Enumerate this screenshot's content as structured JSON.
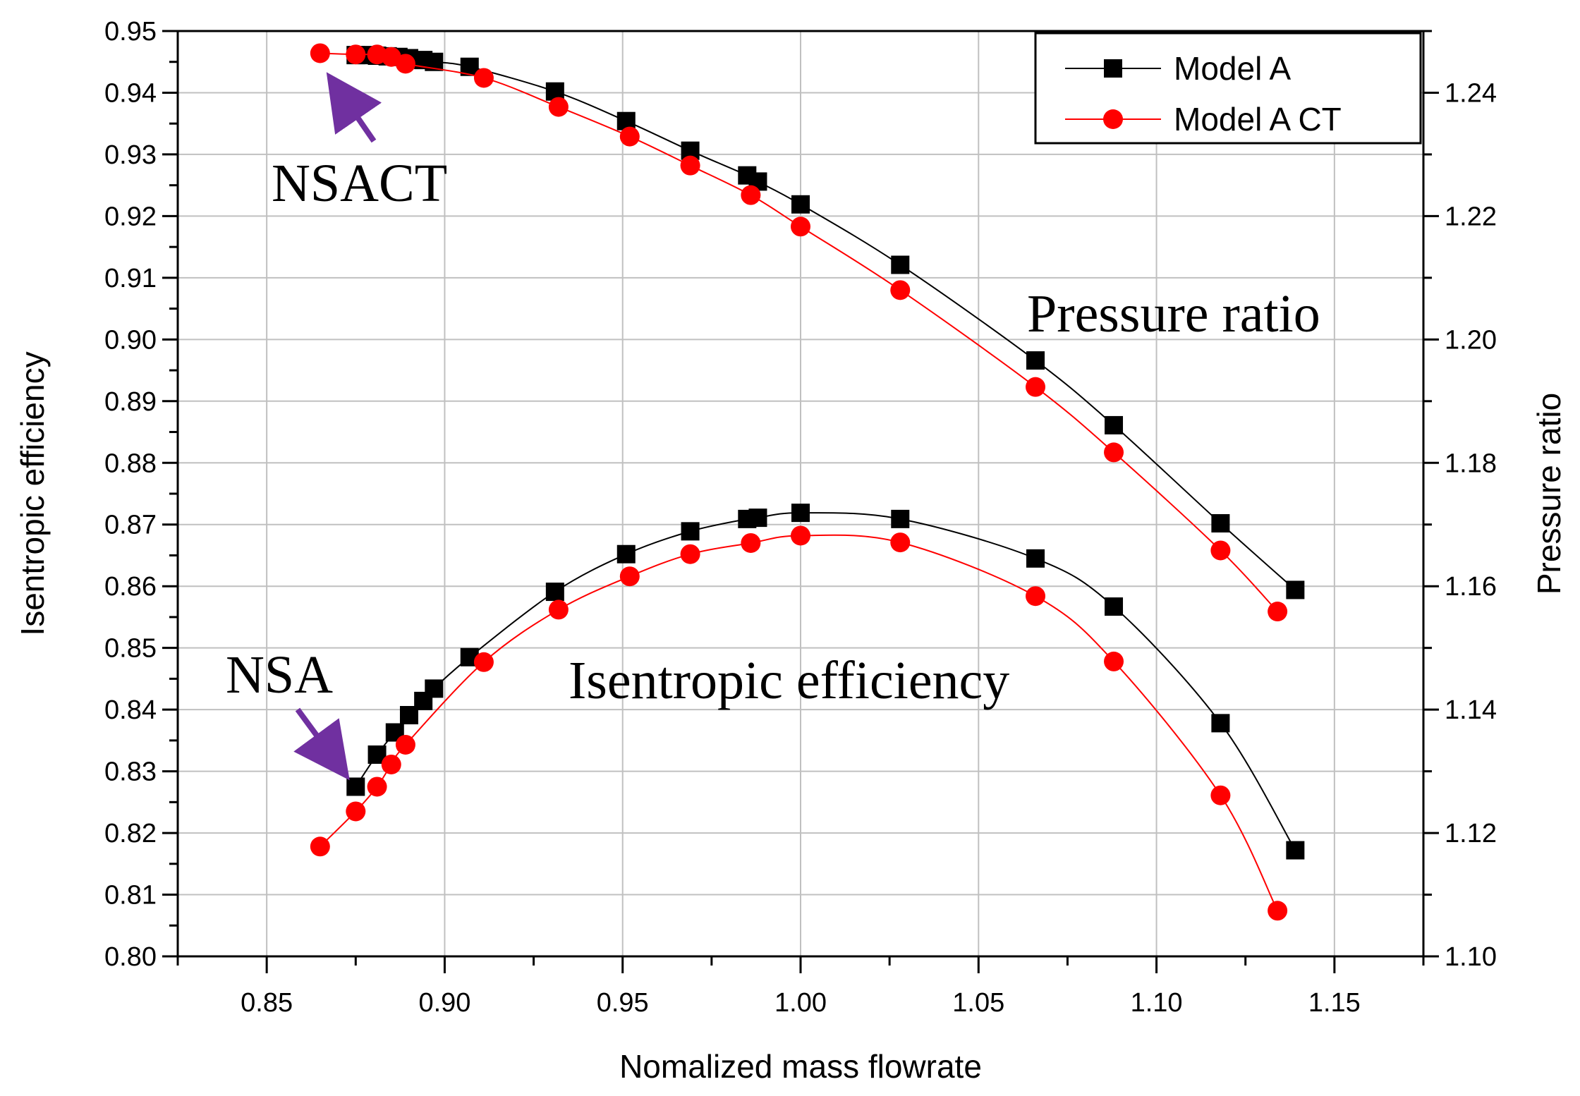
{
  "chart_data": {
    "type": "line",
    "xlabel": "Nomalized mass flowrate",
    "ylabel_left": "Isentropic efficiency",
    "ylabel_right": "Pressure ratio",
    "xlim": [
      0.825,
      1.175
    ],
    "ylim_left": [
      0.8,
      0.95
    ],
    "ylim_right": [
      1.1,
      1.25
    ],
    "x_ticks": [
      "0.85",
      "0.90",
      "0.95",
      "1.00",
      "1.05",
      "1.10",
      "1.15"
    ],
    "y_left_ticks": [
      "0.80",
      "0.81",
      "0.82",
      "0.83",
      "0.84",
      "0.85",
      "0.86",
      "0.87",
      "0.88",
      "0.89",
      "0.90",
      "0.91",
      "0.92",
      "0.93",
      "0.94",
      "0.95"
    ],
    "y_right_ticks": [
      "1.10",
      "1.12",
      "1.14",
      "1.16",
      "1.18",
      "1.20",
      "1.22",
      "1.24"
    ],
    "grid": true,
    "legend_position": "top-right",
    "series": [
      {
        "name": "Model A",
        "axis": "right",
        "quantity": "Pressure ratio",
        "color": "#000000",
        "marker": "square",
        "x": [
          0.875,
          0.878,
          0.881,
          0.884,
          0.887,
          0.89,
          0.894,
          0.897,
          0.907,
          0.931,
          0.951,
          0.969,
          0.985,
          0.988,
          1.0,
          1.028,
          1.066,
          1.088,
          1.118,
          1.139
        ],
        "values": [
          1.2461,
          1.2461,
          1.246,
          1.2459,
          1.2458,
          1.2456,
          1.2453,
          1.245,
          1.2442,
          1.2402,
          1.2354,
          1.2306,
          1.2266,
          1.2256,
          1.2219,
          1.2121,
          1.1966,
          1.1861,
          1.1702,
          1.1594
        ]
      },
      {
        "name": "Model A CT",
        "axis": "right",
        "quantity": "Pressure ratio",
        "color": "#ff0000",
        "marker": "circle",
        "x": [
          0.865,
          0.875,
          0.881,
          0.885,
          0.889,
          0.911,
          0.932,
          0.952,
          0.969,
          0.986,
          1.0,
          1.028,
          1.066,
          1.088,
          1.118,
          1.134
        ],
        "values": [
          1.2464,
          1.2462,
          1.2462,
          1.2458,
          1.2447,
          1.2424,
          1.2377,
          1.2329,
          1.2282,
          1.2234,
          1.2183,
          1.208,
          1.1923,
          1.1817,
          1.1658,
          1.1559
        ]
      },
      {
        "name": "Model A",
        "axis": "left",
        "quantity": "Isentropic efficiency",
        "color": "#000000",
        "marker": "square",
        "x": [
          0.875,
          0.881,
          0.886,
          0.89,
          0.894,
          0.897,
          0.907,
          0.931,
          0.951,
          0.969,
          0.985,
          0.988,
          1.0,
          1.028,
          1.066,
          1.088,
          1.118,
          1.139
        ],
        "values": [
          0.8275,
          0.8327,
          0.8363,
          0.8391,
          0.8414,
          0.8434,
          0.8485,
          0.8591,
          0.8652,
          0.8689,
          0.8709,
          0.8711,
          0.8719,
          0.8709,
          0.8645,
          0.8567,
          0.8378,
          0.8172
        ]
      },
      {
        "name": "Model A CT",
        "axis": "left",
        "quantity": "Isentropic efficiency",
        "color": "#ff0000",
        "marker": "circle",
        "x": [
          0.865,
          0.875,
          0.881,
          0.885,
          0.889,
          0.911,
          0.932,
          0.952,
          0.969,
          0.986,
          1.0,
          1.028,
          1.066,
          1.088,
          1.118,
          1.134
        ],
        "values": [
          0.8178,
          0.8235,
          0.8275,
          0.8311,
          0.8343,
          0.8477,
          0.8562,
          0.8616,
          0.8652,
          0.867,
          0.8682,
          0.8671,
          0.8584,
          0.8478,
          0.8261,
          0.8074
        ]
      }
    ],
    "annotations": [
      {
        "text": "NSACT",
        "target_x": 0.865,
        "target_value": 1.2464,
        "axis": "right",
        "arrow_color": "#7030a0"
      },
      {
        "text": "NSA",
        "target_x": 0.875,
        "target_value": 0.8275,
        "axis": "left",
        "arrow_color": "#7030a0"
      },
      {
        "text": "Pressure ratio"
      },
      {
        "text": "Isentropic efficiency"
      }
    ]
  }
}
